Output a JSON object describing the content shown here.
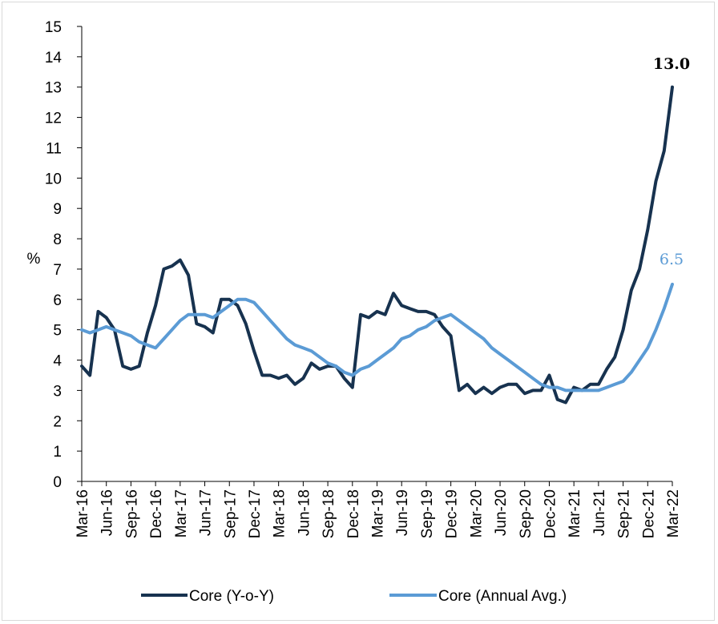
{
  "chart_data": {
    "type": "line",
    "title": "",
    "ylabel": "%",
    "xlabel": "",
    "ylim": [
      0,
      15
    ],
    "yticks": [
      0,
      1,
      2,
      3,
      4,
      5,
      6,
      7,
      8,
      9,
      10,
      11,
      12,
      13,
      14,
      15
    ],
    "x_tick_labels": [
      "Mar-16",
      "Jun-16",
      "Sep-16",
      "Dec-16",
      "Mar-17",
      "Jun-17",
      "Sep-17",
      "Dec-17",
      "Mar-18",
      "Jun-18",
      "Sep-18",
      "Dec-18",
      "Mar-19",
      "Jun-19",
      "Sep-19",
      "Dec-19",
      "Mar-20",
      "Jun-20",
      "Sep-20",
      "Dec-20",
      "Mar-21",
      "Jun-21",
      "Sep-21",
      "Dec-21",
      "Mar-22"
    ],
    "grid": false,
    "legend_position": "bottom",
    "series": [
      {
        "name": "Core (Y-o-Y)",
        "color": "#17324f",
        "end_label": "13.0",
        "values": [
          3.8,
          3.5,
          5.6,
          5.4,
          5.0,
          3.8,
          3.7,
          3.8,
          4.9,
          5.8,
          7.0,
          7.1,
          7.3,
          6.8,
          5.2,
          5.1,
          4.9,
          6.0,
          6.0,
          5.8,
          5.2,
          4.3,
          3.5,
          3.5,
          3.4,
          3.5,
          3.2,
          3.4,
          3.9,
          3.7,
          3.8,
          3.8,
          3.4,
          3.1,
          5.5,
          5.4,
          5.6,
          5.5,
          6.2,
          5.8,
          5.7,
          5.6,
          5.6,
          5.5,
          5.1,
          4.8,
          3.0,
          3.2,
          2.9,
          3.1,
          2.9,
          3.1,
          3.2,
          3.2,
          2.9,
          3.0,
          3.0,
          3.5,
          2.7,
          2.6,
          3.1,
          3.0,
          3.2,
          3.2,
          3.7,
          4.1,
          5.0,
          6.3,
          7.0,
          8.3,
          9.9,
          10.9,
          13.0
        ]
      },
      {
        "name": "Core (Annual Avg.)",
        "color": "#5b9bd5",
        "end_label": "6.5",
        "values": [
          5.0,
          4.9,
          5.0,
          5.1,
          5.0,
          4.9,
          4.8,
          4.6,
          4.5,
          4.4,
          4.7,
          5.0,
          5.3,
          5.5,
          5.5,
          5.5,
          5.4,
          5.6,
          5.8,
          6.0,
          6.0,
          5.9,
          5.6,
          5.3,
          5.0,
          4.7,
          4.5,
          4.4,
          4.3,
          4.1,
          3.9,
          3.8,
          3.6,
          3.5,
          3.7,
          3.8,
          4.0,
          4.2,
          4.4,
          4.7,
          4.8,
          5.0,
          5.1,
          5.3,
          5.4,
          5.5,
          5.3,
          5.1,
          4.9,
          4.7,
          4.4,
          4.2,
          4.0,
          3.8,
          3.6,
          3.4,
          3.2,
          3.1,
          3.1,
          3.0,
          3.0,
          3.0,
          3.0,
          3.0,
          3.1,
          3.2,
          3.3,
          3.6,
          4.0,
          4.4,
          5.0,
          5.7,
          6.5
        ]
      }
    ]
  }
}
